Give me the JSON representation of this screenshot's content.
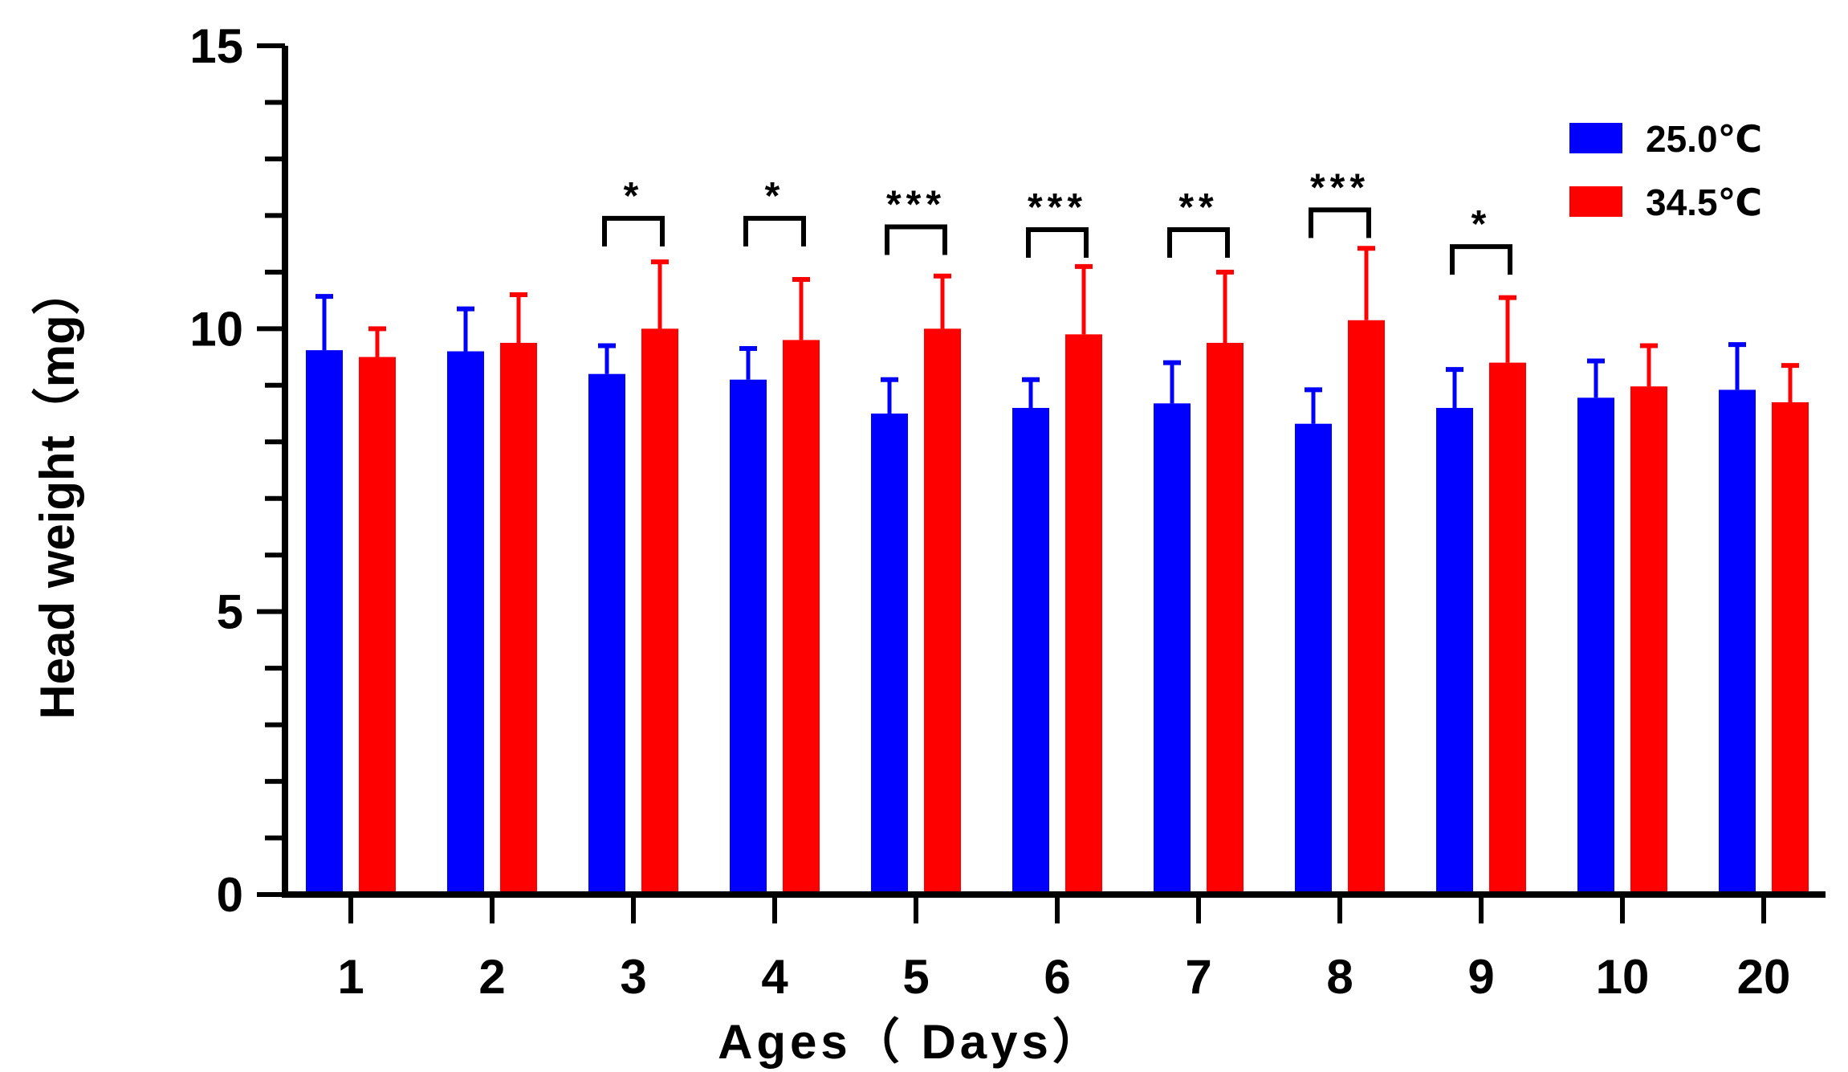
{
  "chart_data": {
    "type": "bar",
    "title": "",
    "xlabel": "Ages（ Days）",
    "ylabel": "Head weight（mg）",
    "ylim": [
      0,
      15
    ],
    "yticks": [
      0,
      5,
      10,
      15
    ],
    "categories": [
      "1",
      "2",
      "3",
      "4",
      "5",
      "6",
      "7",
      "8",
      "9",
      "10",
      "20"
    ],
    "series": [
      {
        "name": "25.0℃",
        "color": "#0000ff",
        "values": [
          9.62,
          9.6,
          9.2,
          9.1,
          8.5,
          8.6,
          8.68,
          8.32,
          8.6,
          8.78,
          8.92
        ],
        "errors": [
          0.95,
          0.75,
          0.5,
          0.55,
          0.6,
          0.5,
          0.72,
          0.6,
          0.68,
          0.65,
          0.8
        ]
      },
      {
        "name": "34.5℃",
        "color": "#ff0000",
        "values": [
          9.5,
          9.75,
          10.0,
          9.8,
          10.0,
          9.9,
          9.75,
          10.15,
          9.4,
          8.98,
          8.7
        ],
        "errors": [
          0.5,
          0.85,
          1.18,
          1.07,
          0.93,
          1.2,
          1.25,
          1.27,
          1.15,
          0.72,
          0.65
        ]
      }
    ],
    "significance": [
      {
        "category": "3",
        "label": "*",
        "level": 11.95
      },
      {
        "category": "4",
        "label": "*",
        "level": 11.95
      },
      {
        "category": "5",
        "label": "***",
        "level": 11.8
      },
      {
        "category": "6",
        "label": "***",
        "level": 11.75
      },
      {
        "category": "7",
        "label": "**",
        "level": 11.75
      },
      {
        "category": "8",
        "label": "***",
        "level": 12.1
      },
      {
        "category": "9",
        "label": "*",
        "level": 11.45
      }
    ],
    "legend_position": "top-right"
  }
}
